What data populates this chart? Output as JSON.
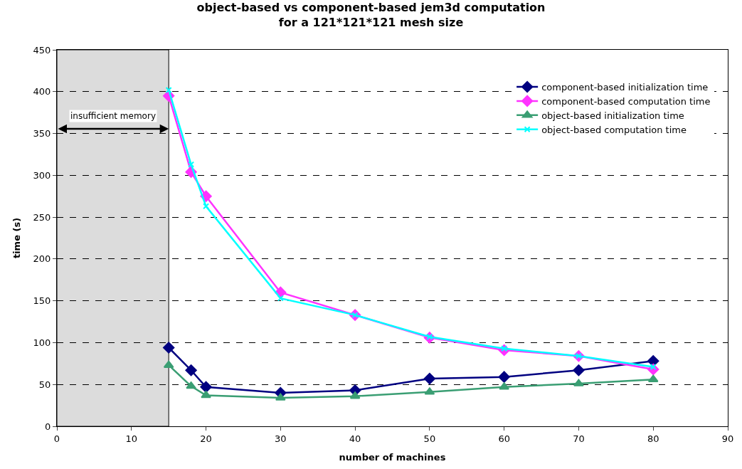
{
  "chart_data": {
    "type": "line",
    "title": "object-based vs component-based jem3d computation\nfor a 121*121*121 mesh size",
    "xlabel": "number of machines",
    "ylabel": "time (s)",
    "x": [
      15,
      18,
      20,
      30,
      40,
      50,
      60,
      70,
      80
    ],
    "series": [
      {
        "name": "component-based initialization time",
        "color": "#000080",
        "marker": "diamond",
        "values": [
          94,
          67,
          47,
          40,
          43,
          57,
          59,
          67,
          78
        ]
      },
      {
        "name": "component-based computation time",
        "color": "#ff33ff",
        "marker": "diamond",
        "values": [
          395,
          304,
          275,
          160,
          133,
          106,
          91,
          84,
          68
        ]
      },
      {
        "name": "object-based initialization time",
        "color": "#3a9e73",
        "marker": "triangle",
        "values": [
          73,
          48,
          37,
          34,
          36,
          41,
          47,
          51,
          56
        ]
      },
      {
        "name": "object-based computation time",
        "color": "#00ffff",
        "marker": "cross",
        "values": [
          402,
          313,
          263,
          153,
          133,
          107,
          93,
          84,
          71
        ]
      }
    ],
    "bands": [
      {
        "axis": "x",
        "from": 0,
        "to": 15,
        "label": "insufficient memory",
        "color": "#dcdcdc"
      }
    ],
    "xlim": [
      0,
      90
    ],
    "xticks": [
      0,
      10,
      20,
      30,
      40,
      50,
      60,
      70,
      80,
      90
    ],
    "ylim": [
      0,
      450
    ],
    "yticks": [
      0,
      50,
      100,
      150,
      200,
      250,
      300,
      350,
      400,
      450
    ],
    "grid": "y",
    "legend": "top right",
    "line_style": "solid"
  }
}
